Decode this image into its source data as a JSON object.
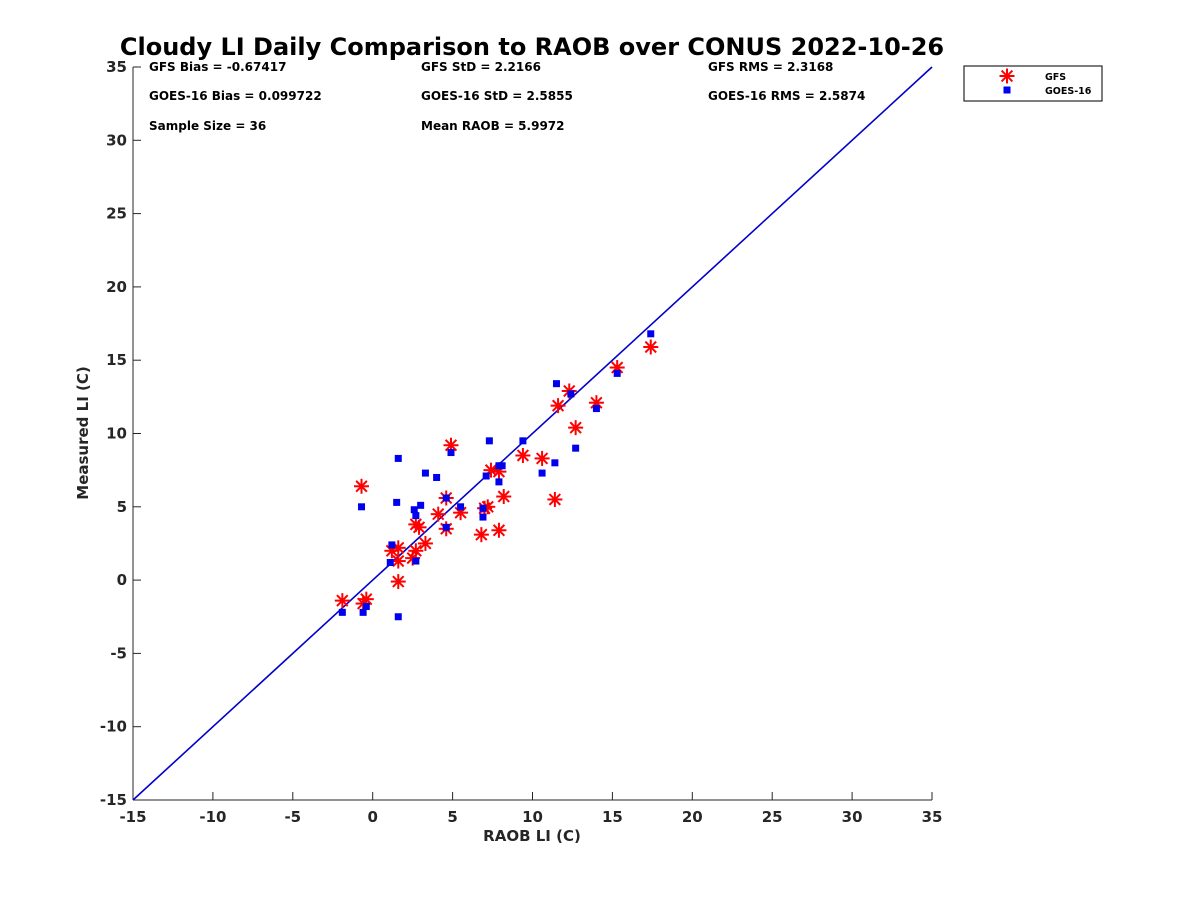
{
  "chart_data": {
    "type": "scatter",
    "title": "Cloudy LI Daily Comparison to RAOB over CONUS 2022-10-26",
    "xlabel": "RAOB LI (C)",
    "ylabel": "Measured LI (C)",
    "xlim": [
      -15,
      35
    ],
    "ylim": [
      -15,
      35
    ],
    "xticks": [
      -15,
      -10,
      -5,
      0,
      5,
      10,
      15,
      20,
      25,
      30,
      35
    ],
    "yticks": [
      -15,
      -10,
      -5,
      0,
      5,
      10,
      15,
      20,
      25,
      30,
      35
    ],
    "grid": false,
    "legend_position": "outside-top-right",
    "one_to_one_line": {
      "from": [
        -15,
        -15
      ],
      "to": [
        35,
        35
      ],
      "color": "#0000cc"
    },
    "stats": [
      {
        "text": "GFS Bias = -0.67417"
      },
      {
        "text": "GFS StD = 2.2166"
      },
      {
        "text": "GFS RMS = 2.3168"
      },
      {
        "text": "GOES-16 Bias = 0.099722"
      },
      {
        "text": "GOES-16 StD = 2.5855"
      },
      {
        "text": "GOES-16 RMS = 2.5874"
      },
      {
        "text": "Sample Size = 36"
      },
      {
        "text": "Mean RAOB = 5.9972"
      }
    ],
    "series": [
      {
        "name": "GFS",
        "marker": "asterisk",
        "color": "#ff0000",
        "points": [
          [
            -0.7,
            6.4
          ],
          [
            4.9,
            9.2
          ],
          [
            7.4,
            7.5
          ],
          [
            7.9,
            7.4
          ],
          [
            9.4,
            8.5
          ],
          [
            10.6,
            8.3
          ],
          [
            11.6,
            11.9
          ],
          [
            12.3,
            12.9
          ],
          [
            12.7,
            10.4
          ],
          [
            14.0,
            12.1
          ],
          [
            15.3,
            14.5
          ],
          [
            17.4,
            15.9
          ],
          [
            11.4,
            5.5
          ],
          [
            8.2,
            5.7
          ],
          [
            4.6,
            5.6
          ],
          [
            5.5,
            4.6
          ],
          [
            4.1,
            4.5
          ],
          [
            7.0,
            4.9
          ],
          [
            7.2,
            5.0
          ],
          [
            6.8,
            3.1
          ],
          [
            7.9,
            3.4
          ],
          [
            4.6,
            3.5
          ],
          [
            2.7,
            3.8
          ],
          [
            2.9,
            3.6
          ],
          [
            3.3,
            2.5
          ],
          [
            2.7,
            2.0
          ],
          [
            2.5,
            1.5
          ],
          [
            1.2,
            2.0
          ],
          [
            1.6,
            2.2
          ],
          [
            1.6,
            1.3
          ],
          [
            1.6,
            -0.1
          ],
          [
            -1.9,
            -1.4
          ],
          [
            -0.6,
            -1.6
          ],
          [
            -0.4,
            -1.3
          ]
        ]
      },
      {
        "name": "GOES-16",
        "marker": "square",
        "color": "#0000ee",
        "points": [
          [
            -0.7,
            5.0
          ],
          [
            1.6,
            8.3
          ],
          [
            1.5,
            5.3
          ],
          [
            2.6,
            4.8
          ],
          [
            3.0,
            5.1
          ],
          [
            2.7,
            4.4
          ],
          [
            3.3,
            7.3
          ],
          [
            4.0,
            7.0
          ],
          [
            4.9,
            8.7
          ],
          [
            4.6,
            5.6
          ],
          [
            5.5,
            5.0
          ],
          [
            4.6,
            3.6
          ],
          [
            6.9,
            4.3
          ],
          [
            6.9,
            4.9
          ],
          [
            7.1,
            7.1
          ],
          [
            7.3,
            9.5
          ],
          [
            7.9,
            7.8
          ],
          [
            8.1,
            7.8
          ],
          [
            7.9,
            6.7
          ],
          [
            9.4,
            9.5
          ],
          [
            10.6,
            7.3
          ],
          [
            11.4,
            8.0
          ],
          [
            11.5,
            13.4
          ],
          [
            12.4,
            12.7
          ],
          [
            12.7,
            9.0
          ],
          [
            14.0,
            11.7
          ],
          [
            15.3,
            14.1
          ],
          [
            17.4,
            16.8
          ],
          [
            2.7,
            1.3
          ],
          [
            1.2,
            2.4
          ],
          [
            1.1,
            1.2
          ],
          [
            -1.9,
            -2.2
          ],
          [
            -0.6,
            -2.2
          ],
          [
            -0.4,
            -1.8
          ],
          [
            1.6,
            -2.5
          ]
        ]
      }
    ]
  }
}
